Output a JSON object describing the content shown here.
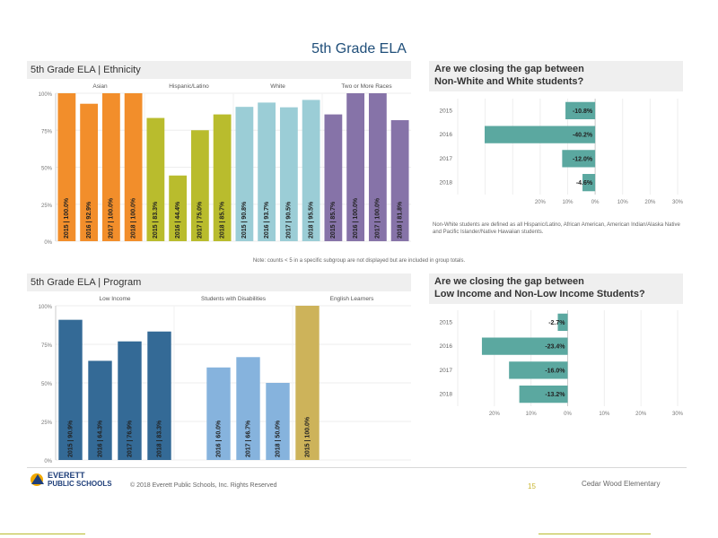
{
  "page": {
    "title": "5th Grade ELA",
    "footer_copyright": "© 2018 Everett Public Schools, Inc. Rights Reserved",
    "page_number": "15",
    "school_name": "Cedar Wood Elementary",
    "logo_line1": "EVERETT",
    "logo_line2": "PUBLIC SCHOOLS",
    "note_middle": "Note: counts < 5 in a specific subgroup are not displayed but are included in group totals."
  },
  "ethnicity": {
    "title": "5th Grade ELA | Ethnicity",
    "groups": [
      "Asian",
      "Hispanic/Latino",
      "White",
      "Two or More Races"
    ]
  },
  "program": {
    "title": "5th Grade ELA | Program",
    "groups": [
      "Low Income",
      "Students with Disabilities",
      "English Learners"
    ]
  },
  "gap1": {
    "title_line1": "Are we closing the gap between",
    "title_line2": "Non-White and White students?",
    "note": "Non-White students are defined as all Hispanic/Latino, African American, American Indian/Alaska Native and Pacific Islander/Native Hawaiian students."
  },
  "gap2": {
    "title_line1": "Are we closing the gap between",
    "title_line2": "Low Income and Non-Low Income Students?"
  },
  "chart_data": [
    {
      "type": "bar",
      "title": "5th Grade ELA | Ethnicity",
      "ylim": [
        0,
        100
      ],
      "yticks": [
        "0%",
        "25%",
        "50%",
        "75%",
        "100%"
      ],
      "series": [
        {
          "group": "Asian",
          "color": "#f28e2b",
          "bars": [
            {
              "label": "2015 | 100.0%",
              "value": 100.0
            },
            {
              "label": "2016 | 92.9%",
              "value": 92.9
            },
            {
              "label": "2017 | 100.0%",
              "value": 100.0
            },
            {
              "label": "2018 | 100.0%",
              "value": 100.0
            }
          ]
        },
        {
          "group": "Hispanic/Latino",
          "color": "#b9bc2d",
          "bars": [
            {
              "label": "2015 | 83.3%",
              "value": 83.3
            },
            {
              "label": "2016 | 44.4%",
              "value": 44.4
            },
            {
              "label": "2017 | 75.0%",
              "value": 75.0
            },
            {
              "label": "2018 | 85.7%",
              "value": 85.7
            }
          ]
        },
        {
          "group": "White",
          "color": "#9bcdd6",
          "bars": [
            {
              "label": "2015 | 90.8%",
              "value": 90.8
            },
            {
              "label": "2016 | 93.7%",
              "value": 93.7
            },
            {
              "label": "2017 | 90.5%",
              "value": 90.5
            },
            {
              "label": "2018 | 95.5%",
              "value": 95.5
            }
          ]
        },
        {
          "group": "Two or More Races",
          "color": "#8673a8",
          "bars": [
            {
              "label": "2015 | 85.7%",
              "value": 85.7
            },
            {
              "label": "2016 | 100.0%",
              "value": 100.0
            },
            {
              "label": "2017 | 100.0%",
              "value": 100.0
            },
            {
              "label": "2018 | 81.8%",
              "value": 81.8
            }
          ]
        }
      ]
    },
    {
      "type": "bar",
      "orientation": "horizontal",
      "title": "Are we closing the gap between Non-White and White students?",
      "categories": [
        "2015",
        "2016",
        "2017",
        "2018"
      ],
      "values": [
        -10.8,
        -40.2,
        -12.0,
        -4.6
      ],
      "labels": [
        "-10.8%",
        "-40.2%",
        "-12.0%",
        "-4.6%"
      ],
      "xlim": [
        -50,
        30
      ],
      "xticks": [
        -50,
        -40,
        -30,
        -20,
        -10,
        0,
        10,
        20,
        30
      ],
      "xtick_labels": [
        "",
        "",
        "",
        "20%",
        "10%",
        "0%",
        "10%",
        "20%",
        "30%"
      ],
      "color": "#5ba8a0"
    },
    {
      "type": "bar",
      "title": "5th Grade ELA | Program",
      "ylim": [
        0,
        100
      ],
      "yticks": [
        "0%",
        "25%",
        "50%",
        "75%",
        "100%"
      ],
      "series": [
        {
          "group": "Low Income",
          "color": "#346a96",
          "bars": [
            {
              "label": "2015 | 90.9%",
              "value": 90.9
            },
            {
              "label": "2016 | 64.3%",
              "value": 64.3
            },
            {
              "label": "2017 | 76.9%",
              "value": 76.9
            },
            {
              "label": "2018 | 83.3%",
              "value": 83.3
            }
          ]
        },
        {
          "group": "Students with Disabilities",
          "color": "#86b3dd",
          "bars": [
            {
              "label": "",
              "value": null
            },
            {
              "label": "2016 | 60.0%",
              "value": 60.0
            },
            {
              "label": "2017 | 66.7%",
              "value": 66.7
            },
            {
              "label": "2018 | 50.0%",
              "value": 50.0
            }
          ]
        },
        {
          "group": "English Learners",
          "color": "#cdb35a",
          "bars": [
            {
              "label": "2015 | 100.0%",
              "value": 100.0
            }
          ]
        }
      ]
    },
    {
      "type": "bar",
      "orientation": "horizontal",
      "title": "Are we closing the gap between Low Income and Non-Low Income Students?",
      "categories": [
        "2015",
        "2016",
        "2017",
        "2018"
      ],
      "values": [
        -2.7,
        -23.4,
        -16.0,
        -13.2
      ],
      "labels": [
        "-2.7%",
        "-23.4%",
        "-16.0%",
        "-13.2%"
      ],
      "xlim": [
        -30,
        30
      ],
      "xticks": [
        -30,
        -20,
        -10,
        0,
        10,
        20,
        30
      ],
      "xtick_labels": [
        "",
        "20%",
        "10%",
        "0%",
        "10%",
        "20%",
        "30%"
      ],
      "color": "#5ba8a0"
    }
  ]
}
